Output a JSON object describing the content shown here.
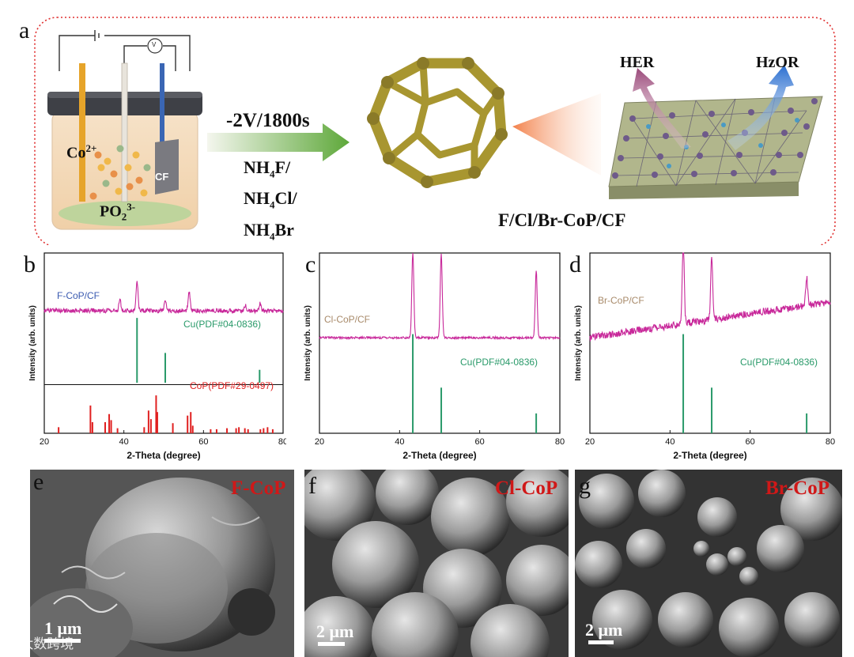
{
  "panel_a": {
    "letter": "a",
    "ions": {
      "co": "Co",
      "co_charge": "2+",
      "po": "PO",
      "po_sub": "2",
      "po_charge": "3-"
    },
    "electrode": "CF",
    "voltmeter": "V",
    "condition": "-2V/1800s",
    "reagents": [
      {
        "base": "NH",
        "sub": "4",
        "rest": "F/"
      },
      {
        "base": "NH",
        "sub": "4",
        "rest": "Cl/"
      },
      {
        "base": "NH",
        "sub": "4",
        "rest": "Br"
      }
    ],
    "product": "F/Cl/Br-CoP/CF",
    "reactions": [
      "HER",
      "HzOR"
    ]
  },
  "chart_data": [
    {
      "type": "line+stick",
      "panel": "b",
      "xlabel": "2-Theta (degree)",
      "ylabel": "Intensity (arb. units)",
      "xlim": [
        20,
        80
      ],
      "xticks": [
        20,
        40,
        60,
        80
      ],
      "series": [
        {
          "name": "F-CoP/CF",
          "color": "#c8289a",
          "peaks": [
            {
              "x": 39,
              "h": 0.35
            },
            {
              "x": 43.3,
              "h": 0.9
            },
            {
              "x": 50.4,
              "h": 0.35
            },
            {
              "x": 56.4,
              "h": 0.6
            },
            {
              "x": 70.5,
              "h": 0.18
            },
            {
              "x": 74.2,
              "h": 0.22
            }
          ]
        },
        {
          "name": "CoP(PDF#29-0497)",
          "color": "#e02020",
          "sticks": [
            {
              "x": 23.6,
              "h": 0.12
            },
            {
              "x": 31.6,
              "h": 0.55
            },
            {
              "x": 32.1,
              "h": 0.22
            },
            {
              "x": 35.3,
              "h": 0.22
            },
            {
              "x": 36.3,
              "h": 0.38
            },
            {
              "x": 36.8,
              "h": 0.26
            },
            {
              "x": 38.4,
              "h": 0.1
            },
            {
              "x": 45.1,
              "h": 0.12
            },
            {
              "x": 46.2,
              "h": 0.45
            },
            {
              "x": 46.8,
              "h": 0.28
            },
            {
              "x": 48.1,
              "h": 0.75
            },
            {
              "x": 48.4,
              "h": 0.42
            },
            {
              "x": 52.3,
              "h": 0.2
            },
            {
              "x": 56.0,
              "h": 0.35
            },
            {
              "x": 56.8,
              "h": 0.42
            },
            {
              "x": 57.3,
              "h": 0.15
            },
            {
              "x": 61.8,
              "h": 0.08
            },
            {
              "x": 63.3,
              "h": 0.08
            },
            {
              "x": 65.9,
              "h": 0.1
            },
            {
              "x": 68.2,
              "h": 0.1
            },
            {
              "x": 68.9,
              "h": 0.12
            },
            {
              "x": 70.4,
              "h": 0.1
            },
            {
              "x": 71.2,
              "h": 0.08
            },
            {
              "x": 74.3,
              "h": 0.08
            },
            {
              "x": 75.1,
              "h": 0.1
            },
            {
              "x": 76.1,
              "h": 0.12
            },
            {
              "x": 77.4,
              "h": 0.08
            }
          ]
        },
        {
          "name": "Cu(PDF#04-0836)",
          "color": "#2a9a6a",
          "sticks": [
            {
              "x": 43.3,
              "h": 1.0
            },
            {
              "x": 50.4,
              "h": 0.46
            },
            {
              "x": 74.1,
              "h": 0.2
            }
          ]
        }
      ]
    },
    {
      "type": "line+stick",
      "panel": "c",
      "xlabel": "2-Theta (degree)",
      "ylabel": "Intensity (arb. units)",
      "xlim": [
        20,
        80
      ],
      "xticks": [
        20,
        40,
        60,
        80
      ],
      "series": [
        {
          "name": "Cl-CoP/CF",
          "color": "#c8289a",
          "peaks": [
            {
              "x": 43.3,
              "h": 1.0
            },
            {
              "x": 50.4,
              "h": 1.0
            },
            {
              "x": 74.1,
              "h": 0.8
            }
          ]
        },
        {
          "name": "Cu(PDF#04-0836)",
          "color": "#2a9a6a",
          "sticks": [
            {
              "x": 43.3,
              "h": 1.0
            },
            {
              "x": 50.4,
              "h": 0.46
            },
            {
              "x": 74.1,
              "h": 0.2
            }
          ]
        }
      ]
    },
    {
      "type": "line+stick",
      "panel": "d",
      "xlabel": "2-Theta (degree)",
      "ylabel": "Intensity (arb. units)",
      "xlim": [
        20,
        80
      ],
      "xticks": [
        20,
        40,
        60,
        80
      ],
      "series": [
        {
          "name": "Br-CoP/CF",
          "color": "#c8289a",
          "peaks": [
            {
              "x": 43.3,
              "h": 1.0
            },
            {
              "x": 50.4,
              "h": 0.8
            },
            {
              "x": 74.1,
              "h": 0.35
            }
          ]
        },
        {
          "name": "Cu(PDF#04-0836)",
          "color": "#2a9a6a",
          "sticks": [
            {
              "x": 43.3,
              "h": 1.0
            },
            {
              "x": 50.4,
              "h": 0.46
            },
            {
              "x": 74.1,
              "h": 0.2
            }
          ]
        }
      ]
    }
  ],
  "sem_panels": [
    {
      "letter": "e",
      "label": "F-CoP",
      "scale": "1 μm"
    },
    {
      "letter": "f",
      "label": "Cl-CoP",
      "scale": "2 μm"
    },
    {
      "letter": "g",
      "label": "Br-CoP",
      "scale": "2 μm"
    }
  ],
  "watermark": "大数跨境"
}
